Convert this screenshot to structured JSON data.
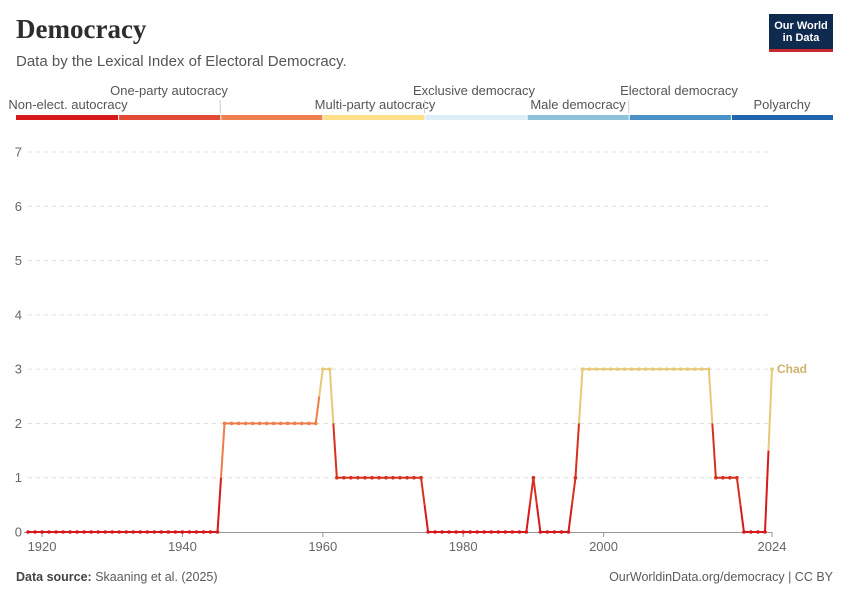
{
  "header": {
    "title": "Democracy",
    "subtitle": "Data by the Lexical Index of Electoral Democracy.",
    "logo_line1": "Our World",
    "logo_line2": "in Data"
  },
  "footer": {
    "source_label": "Data source:",
    "source_text": "Skaaning et al. (2025)",
    "credit": "OurWorldinData.org/democracy | CC BY"
  },
  "chart_data": {
    "type": "line",
    "title": "Democracy",
    "subtitle": "Data by the Lexical Index of Electoral Democracy.",
    "xlabel": "",
    "ylabel": "",
    "xlim": [
      1918,
      2024
    ],
    "ylim": [
      0,
      7
    ],
    "y_ticks": [
      0,
      1,
      2,
      3,
      4,
      5,
      6,
      7
    ],
    "x_ticks": [
      1920,
      1940,
      1960,
      1980,
      2000,
      2024
    ],
    "grid": true,
    "legend": {
      "placement": "top",
      "categories": [
        {
          "label": "Non-elect. autocracy",
          "value": 0,
          "color": "#d7191c"
        },
        {
          "label": "One-party autocracy",
          "value": 1,
          "color": "#e34a33"
        },
        {
          "label": "Multi-party autocracy",
          "value": 2,
          "color": "#f0804e"
        },
        {
          "label": "Exclusive democracy",
          "value": 3,
          "color": "#fee08b"
        },
        {
          "label": "Male democracy",
          "value": 4,
          "color": "#deeef8"
        },
        {
          "label": "Electoral democracy",
          "value": 5,
          "color": "#8ec1da"
        },
        {
          "label": "Polyarchy",
          "value": 6,
          "color": "#4a91c5"
        },
        {
          "label": "",
          "value": 7,
          "color": "#2166ac"
        }
      ]
    },
    "series": [
      {
        "name": "Chad",
        "x": [
          1918,
          1919,
          1920,
          1921,
          1922,
          1923,
          1924,
          1925,
          1926,
          1927,
          1928,
          1929,
          1930,
          1931,
          1932,
          1933,
          1934,
          1935,
          1936,
          1937,
          1938,
          1939,
          1940,
          1941,
          1942,
          1943,
          1944,
          1945,
          1946,
          1947,
          1948,
          1949,
          1950,
          1951,
          1952,
          1953,
          1954,
          1955,
          1956,
          1957,
          1958,
          1959,
          1960,
          1961,
          1962,
          1963,
          1964,
          1965,
          1966,
          1967,
          1968,
          1969,
          1970,
          1971,
          1972,
          1973,
          1974,
          1975,
          1976,
          1977,
          1978,
          1979,
          1980,
          1981,
          1982,
          1983,
          1984,
          1985,
          1986,
          1987,
          1988,
          1989,
          1990,
          1991,
          1992,
          1993,
          1994,
          1995,
          1996,
          1997,
          1998,
          1999,
          2000,
          2001,
          2002,
          2003,
          2004,
          2005,
          2006,
          2007,
          2008,
          2009,
          2010,
          2011,
          2012,
          2013,
          2014,
          2015,
          2016,
          2017,
          2018,
          2019,
          2020,
          2021,
          2022,
          2023,
          2024
        ],
        "values": [
          0,
          0,
          0,
          0,
          0,
          0,
          0,
          0,
          0,
          0,
          0,
          0,
          0,
          0,
          0,
          0,
          0,
          0,
          0,
          0,
          0,
          0,
          0,
          0,
          0,
          0,
          0,
          0,
          2,
          2,
          2,
          2,
          2,
          2,
          2,
          2,
          2,
          2,
          2,
          2,
          2,
          2,
          3,
          3,
          1,
          1,
          1,
          1,
          1,
          1,
          1,
          1,
          1,
          1,
          1,
          1,
          1,
          0,
          0,
          0,
          0,
          0,
          0,
          0,
          0,
          0,
          0,
          0,
          0,
          0,
          0,
          0,
          1,
          0,
          0,
          0,
          0,
          0,
          1,
          3,
          3,
          3,
          3,
          3,
          3,
          3,
          3,
          3,
          3,
          3,
          3,
          3,
          3,
          3,
          3,
          3,
          3,
          3,
          1,
          1,
          1,
          1,
          0,
          0,
          0,
          0,
          3
        ]
      }
    ]
  }
}
